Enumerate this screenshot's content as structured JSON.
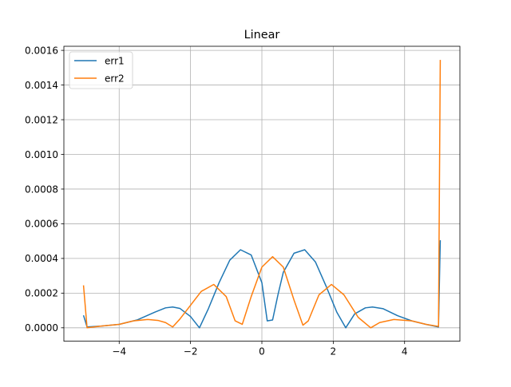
{
  "chart_data": {
    "type": "line",
    "title": "Linear",
    "xlabel": "",
    "ylabel": "",
    "xlim": [
      -5.55,
      5.55
    ],
    "ylim": [
      -7.73e-05,
      0.0016235
    ],
    "grid": true,
    "legend_position": "top-left",
    "x_ticks": [
      {
        "value": -4,
        "label": "−4"
      },
      {
        "value": -2,
        "label": "−2"
      },
      {
        "value": 0,
        "label": "0"
      },
      {
        "value": 2,
        "label": "2"
      },
      {
        "value": 4,
        "label": "4"
      }
    ],
    "y_ticks": [
      {
        "value": 0.0,
        "label": "0.0000"
      },
      {
        "value": 0.0002,
        "label": "0.0002"
      },
      {
        "value": 0.0004,
        "label": "0.0004"
      },
      {
        "value": 0.0006,
        "label": "0.0006"
      },
      {
        "value": 0.0008,
        "label": "0.0008"
      },
      {
        "value": 0.001,
        "label": "0.0010"
      },
      {
        "value": 0.0012,
        "label": "0.0012"
      },
      {
        "value": 0.0014,
        "label": "0.0014"
      },
      {
        "value": 0.0016,
        "label": "0.0016"
      }
    ],
    "series": [
      {
        "name": "err1",
        "color": "#1f77b4",
        "x": [
          -5.0,
          -4.9,
          -4.5,
          -4.0,
          -3.5,
          -3.0,
          -2.7,
          -2.5,
          -2.3,
          -2.0,
          -1.75,
          -1.5,
          -1.2,
          -0.9,
          -0.6,
          -0.3,
          0.0,
          0.15,
          0.3,
          0.45,
          0.6,
          0.9,
          1.2,
          1.5,
          1.8,
          2.1,
          2.35,
          2.6,
          2.9,
          3.1,
          3.4,
          3.8,
          4.2,
          4.6,
          4.95,
          5.0
        ],
        "y": [
          7.2e-05,
          5e-06,
          1e-05,
          2e-05,
          4.5e-05,
          9e-05,
          0.000115,
          0.00012,
          0.000112,
          6.5e-05,
          0.0,
          0.00011,
          0.00026,
          0.00039,
          0.00045,
          0.00042,
          0.00026,
          4e-05,
          4.5e-05,
          0.00019,
          0.00032,
          0.00043,
          0.00045,
          0.00038,
          0.00024,
          9e-05,
          0.0,
          8e-05,
          0.000115,
          0.00012,
          0.00011,
          7e-05,
          4e-05,
          2e-05,
          5e-06,
          0.000505
        ]
      },
      {
        "name": "err2",
        "color": "#ff7f0e",
        "x": [
          -5.0,
          -4.9,
          -4.5,
          -4.0,
          -3.6,
          -3.2,
          -2.9,
          -2.7,
          -2.5,
          -2.3,
          -2.0,
          -1.7,
          -1.35,
          -1.0,
          -0.75,
          -0.55,
          -0.3,
          0.0,
          0.3,
          0.6,
          0.9,
          1.15,
          1.3,
          1.6,
          1.95,
          2.3,
          2.7,
          3.05,
          3.3,
          3.7,
          4.2,
          4.6,
          4.95,
          5.0
        ],
        "y": [
          0.000245,
          0.0,
          1e-05,
          2e-05,
          4e-05,
          4.8e-05,
          4.2e-05,
          3e-05,
          5e-06,
          5e-05,
          0.00013,
          0.00021,
          0.00025,
          0.00018,
          4e-05,
          2e-05,
          0.00018,
          0.00035,
          0.00041,
          0.00035,
          0.00016,
          1.5e-05,
          4e-05,
          0.00019,
          0.00025,
          0.00019,
          6e-05,
          0.0,
          3e-05,
          4.8e-05,
          4e-05,
          2e-05,
          8e-06,
          0.001545
        ]
      }
    ]
  }
}
